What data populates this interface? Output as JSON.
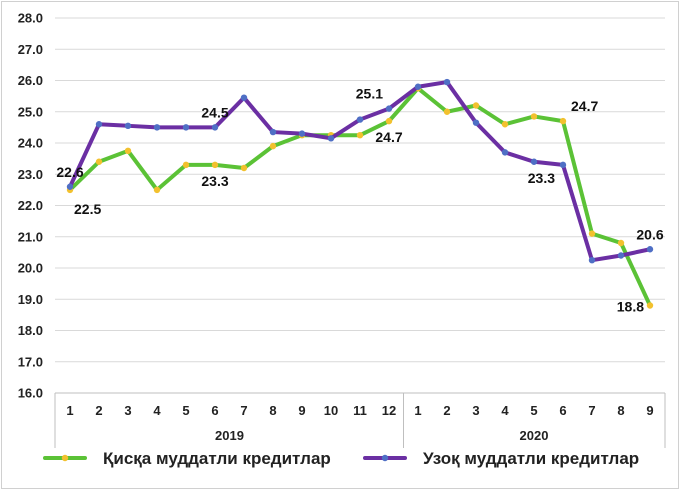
{
  "chart_data": {
    "type": "line",
    "title": "",
    "xlabel": "",
    "ylabel": "",
    "ylim": [
      16.0,
      28.0
    ],
    "yticks": [
      "16.0",
      "17.0",
      "18.0",
      "19.0",
      "20.0",
      "21.0",
      "22.0",
      "23.0",
      "24.0",
      "25.0",
      "26.0",
      "27.0",
      "28.0"
    ],
    "grid": true,
    "legend_position": "bottom",
    "categories": [
      "1",
      "2",
      "3",
      "4",
      "5",
      "6",
      "7",
      "8",
      "9",
      "10",
      "11",
      "12",
      "1",
      "2",
      "3",
      "4",
      "5",
      "6",
      "7",
      "8",
      "9"
    ],
    "year_groups": [
      {
        "label": "2019",
        "start": 0,
        "end": 11
      },
      {
        "label": "2020",
        "start": 12,
        "end": 20
      }
    ],
    "series": [
      {
        "name": "Қисқа муддатли кредитлар",
        "color": "#5BC236",
        "marker_color": "#F2C12E",
        "values": [
          22.5,
          23.4,
          23.75,
          22.5,
          23.3,
          23.3,
          23.2,
          23.9,
          24.25,
          24.25,
          24.25,
          24.7,
          25.75,
          25.0,
          25.2,
          24.6,
          24.85,
          24.7,
          21.1,
          20.8,
          18.8
        ]
      },
      {
        "name": "Узоқ муддатли кредитлар",
        "color": "#6B2FA3",
        "marker_color": "#4F6FC5",
        "values": [
          22.6,
          24.6,
          24.55,
          24.5,
          24.5,
          24.5,
          25.45,
          24.35,
          24.3,
          24.15,
          24.75,
          25.1,
          25.8,
          25.95,
          24.65,
          23.7,
          23.4,
          23.3,
          20.25,
          20.4,
          20.6
        ]
      }
    ],
    "annotations": [
      {
        "text": "22.6",
        "series": 1,
        "index": 0,
        "pos": "above"
      },
      {
        "text": "22.5",
        "series": 0,
        "index": 0,
        "pos": "below-right"
      },
      {
        "text": "24.5",
        "series": 1,
        "index": 5,
        "pos": "above"
      },
      {
        "text": "23.3",
        "series": 0,
        "index": 5,
        "pos": "below"
      },
      {
        "text": "25.1",
        "series": 1,
        "index": 11,
        "pos": "above-left"
      },
      {
        "text": "24.7",
        "series": 0,
        "index": 11,
        "pos": "below"
      },
      {
        "text": "24.7",
        "series": 0,
        "index": 17,
        "pos": "above-right"
      },
      {
        "text": "23.3",
        "series": 1,
        "index": 17,
        "pos": "below-left"
      },
      {
        "text": "20.6",
        "series": 1,
        "index": 20,
        "pos": "above"
      },
      {
        "text": "18.8",
        "series": 0,
        "index": 20,
        "pos": "left"
      }
    ]
  }
}
